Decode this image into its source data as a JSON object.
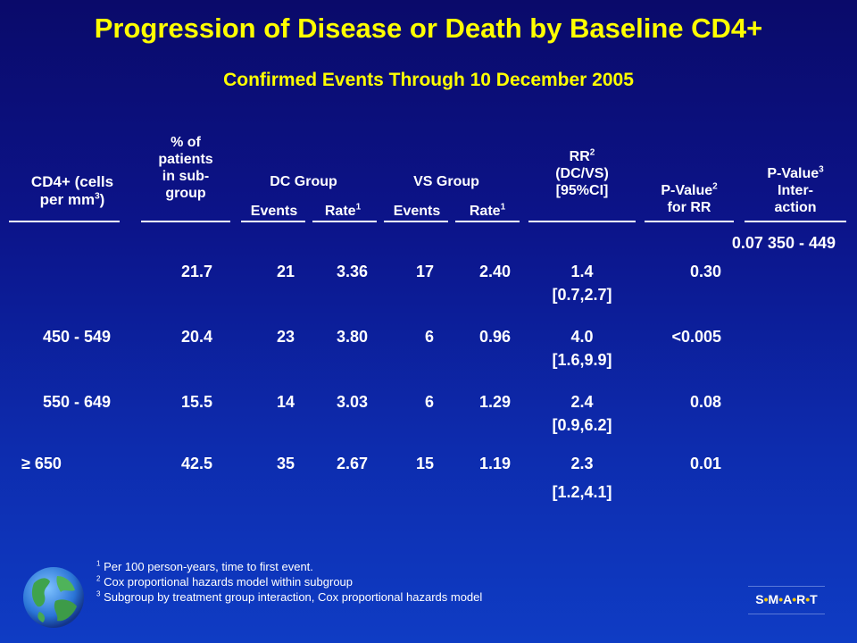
{
  "slide": {
    "title": "Progression of Disease or Death by Baseline CD4+",
    "subtitle": "Confirmed Events Through 10 December 2005"
  },
  "headers": {
    "cd4_line1": "CD4+ (cells",
    "cd4_line2_pre": "per mm",
    "cd4_line2_sup": "3",
    "cd4_line2_post": ")",
    "pct_line1": "% of",
    "pct_line2": "patients",
    "pct_line3": "in sub-",
    "pct_line4": "group",
    "dc_group": "DC Group",
    "vs_group": "VS Group",
    "events": "Events",
    "rate": "Rate",
    "rate_sup": "1",
    "rr_line1": "RR",
    "rr_sup": "2",
    "rr_line2": "(DC/VS)",
    "rr_line3": "[95%CI]",
    "pval_line1": "P-Value",
    "pval_sup": "2",
    "pval_line2": "for RR",
    "pint_line1": "P-Value",
    "pint_sup": "3",
    "pint_line2": "Inter-",
    "pint_line3": "action"
  },
  "top_line": "0.07 350 - 449",
  "rows": [
    {
      "cd4": "",
      "pct": "21.7",
      "dc_events": "21",
      "dc_rate": "3.36",
      "vs_events": "17",
      "vs_rate": "2.40",
      "rr": "1.4",
      "ci": "[0.7,2.7]",
      "p": "0.30"
    },
    {
      "cd4": "450 - 549",
      "pct": "20.4",
      "dc_events": "23",
      "dc_rate": "3.80",
      "vs_events": "6",
      "vs_rate": "0.96",
      "rr": "4.0",
      "ci": "[1.6,9.9]",
      "p": "<0.005"
    },
    {
      "cd4": "550 - 649",
      "pct": "15.5",
      "dc_events": "14",
      "dc_rate": "3.03",
      "vs_events": "6",
      "vs_rate": "1.29",
      "rr": "2.4",
      "ci": "[0.9,6.2]",
      "p": "0.08"
    },
    {
      "cd4": "≥ 650",
      "pct": "42.5",
      "dc_events": "35",
      "dc_rate": "2.67",
      "vs_events": "15",
      "vs_rate": "1.19",
      "rr": "2.3",
      "ci": "[1.2,4.1]",
      "p": "0.01"
    }
  ],
  "footnotes": [
    {
      "num": "1",
      "text": "Per 100 person-years, time to first event."
    },
    {
      "num": "2",
      "text": "Cox proportional hazards model within subgroup"
    },
    {
      "num": "3",
      "text": "Subgroup by treatment group interaction, Cox proportional hazards model"
    }
  ],
  "logo": {
    "s1": "S",
    "m": "M",
    "a": "A",
    "r": "R",
    "t": "T",
    "dot": "•"
  },
  "colors": {
    "title": "#ffff00",
    "text": "#ffffff",
    "background_top": "#0a0a6a",
    "background_bottom": "#0f3cc4"
  },
  "icons": {
    "globe": "globe-icon"
  }
}
